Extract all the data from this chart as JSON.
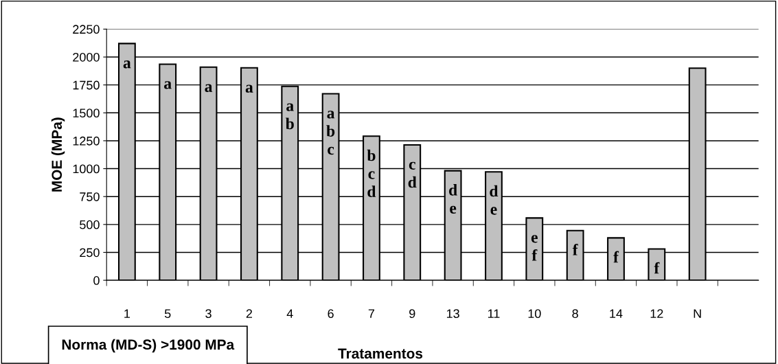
{
  "chart_data": {
    "type": "bar",
    "xlabel": "Tratamentos",
    "ylabel": "MOE (MPa)",
    "categories": [
      "1",
      "5",
      "3",
      "2",
      "4",
      "6",
      "7",
      "9",
      "13",
      "11",
      "10",
      "8",
      "14",
      "12",
      "N",
      null
    ],
    "values": [
      2121,
      1936,
      1909,
      1903,
      1737,
      1671,
      1291,
      1213,
      981,
      971,
      558,
      445,
      380,
      281,
      1900,
      null
    ],
    "color": "#c0c0c0",
    "ylim": [
      0,
      2250
    ],
    "yticks": [
      0,
      250,
      500,
      750,
      1000,
      1250,
      1500,
      1750,
      2000,
      2250
    ],
    "grid": "y",
    "legend": false,
    "value_labels": [
      "a",
      "a",
      "a",
      "a",
      "a\nb",
      "a\nb\nc",
      "b\nc\nd",
      "c\nd",
      "d\ne",
      "d\ne",
      "e\nf",
      "f",
      "f",
      "f",
      null,
      null
    ],
    "annotations": [
      "Norma (MD-S) >1900 MPa"
    ]
  }
}
